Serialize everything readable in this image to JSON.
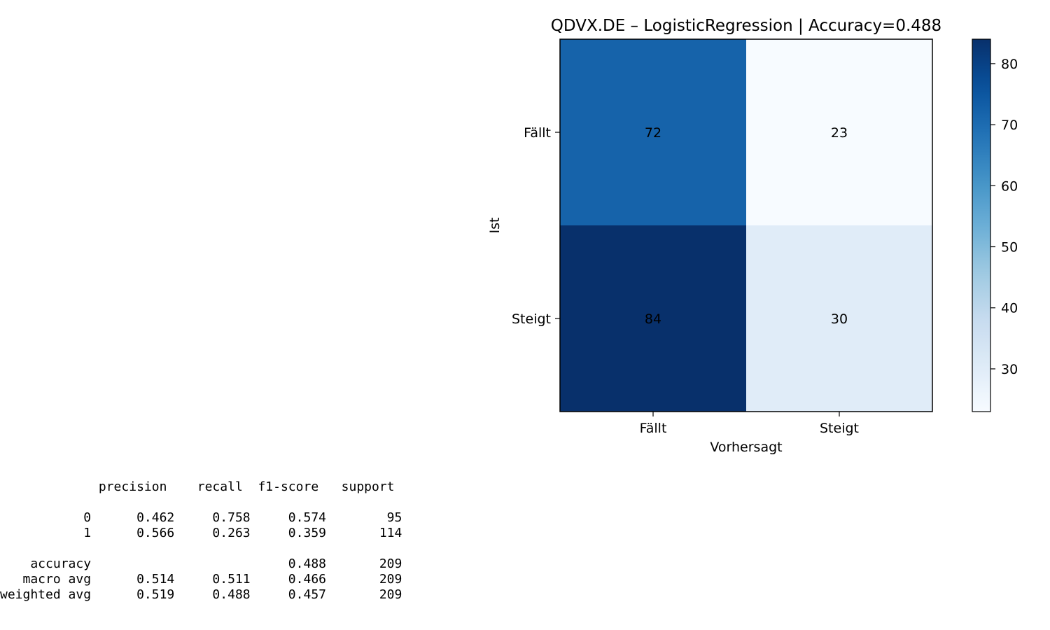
{
  "chart_data": {
    "type": "heatmap",
    "title": "QDVX.DE – LogisticRegression | Accuracy=0.488",
    "xlabel": "Vorhersagt",
    "ylabel": "Ist",
    "x_categories": [
      "Fällt",
      "Steigt"
    ],
    "y_categories": [
      "Fällt",
      "Steigt"
    ],
    "matrix": [
      [
        72,
        23
      ],
      [
        84,
        30
      ]
    ],
    "colormap": "Blues",
    "colorbar": {
      "vmin": 23,
      "vmax": 84,
      "ticks": [
        30,
        40,
        50,
        60,
        70,
        80
      ]
    },
    "grid": false
  },
  "report": {
    "header": "             precision    recall  f1-score   support",
    "rows": [
      "           0      0.462     0.758     0.574        95",
      "           1      0.566     0.263     0.359       114",
      "    accuracy                          0.488       209",
      "   macro avg      0.514     0.511     0.466       209",
      "weighted avg      0.519     0.488     0.457       209"
    ]
  }
}
